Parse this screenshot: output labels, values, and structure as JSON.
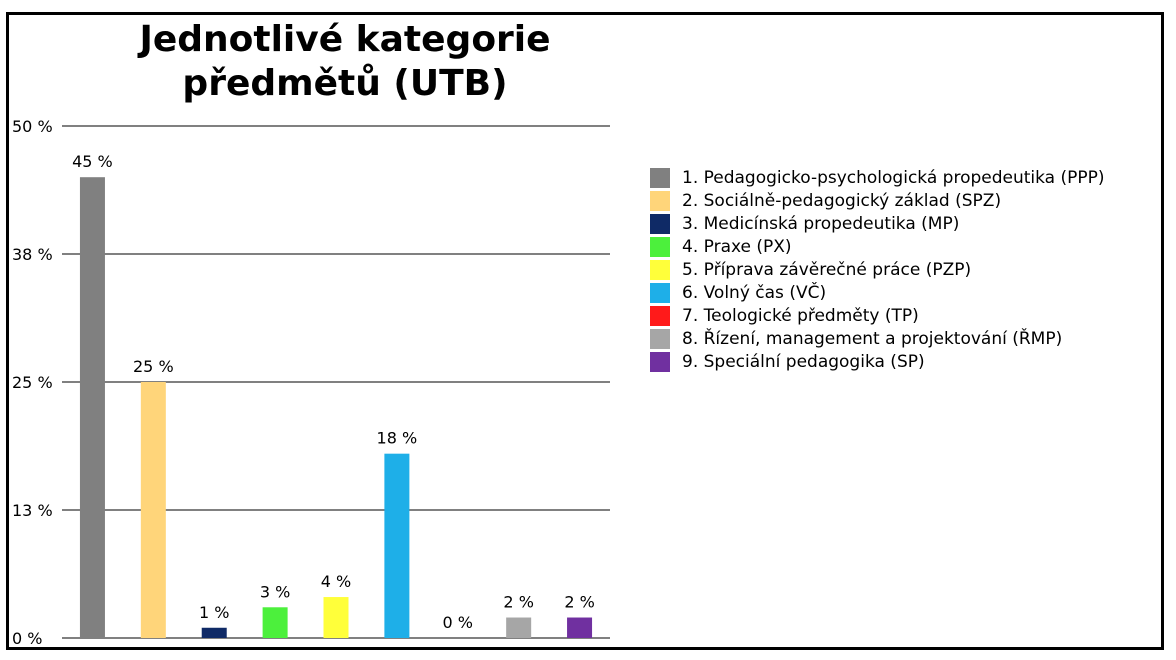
{
  "chart_data": {
    "type": "bar",
    "title_lines": [
      "Jednotlivé kategorie",
      "předmětů (UTB)"
    ],
    "xlabel": "",
    "ylabel": "",
    "ylim": [
      0,
      50
    ],
    "ytick_values": [
      0,
      12.5,
      25,
      37.5,
      50
    ],
    "ytick_labels": [
      "0 %",
      "13 %",
      "25 %",
      "38 %",
      "50 %"
    ],
    "grid": true,
    "legend_position": "right",
    "categories": [
      "1. Pedagogicko-psychologická propedeutika (PPP)",
      "2. Sociálně-pedagogický základ (SPZ)",
      "3. Medicínská propedeutika (MP)",
      "4. Praxe (PX)",
      "5. Příprava závěrečné práce (PZP)",
      "6. Volný čas (VČ)",
      "7. Teologické předměty (TP)",
      "8. Řízení, management a projektování (ŘMP)",
      "9. Speciální pedagogika (SP)"
    ],
    "values": [
      45,
      25,
      1,
      3,
      4,
      18,
      0,
      2,
      2
    ],
    "data_labels": [
      "45 %",
      "25 %",
      "1 %",
      "3 %",
      "4 %",
      "18 %",
      "0 %",
      "2 %",
      "2 %"
    ],
    "colors": [
      "#808080",
      "#FFD57A",
      "#0F2A66",
      "#4CF03C",
      "#FFFF3A",
      "#1EAFE8",
      "#FF1A1A",
      "#A6A6A6",
      "#7030A0"
    ]
  }
}
